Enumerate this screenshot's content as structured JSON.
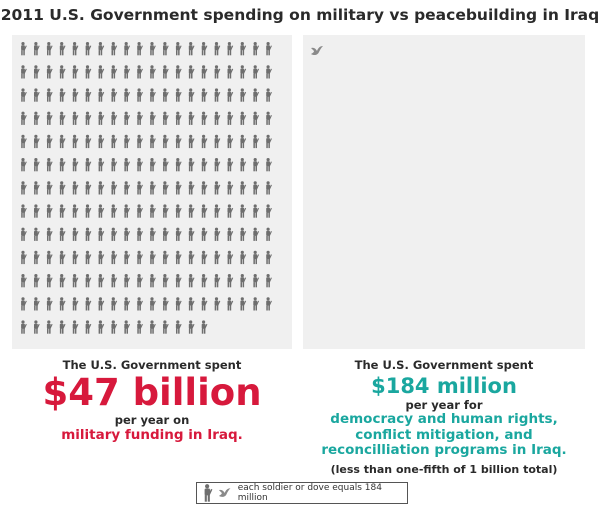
{
  "title": "2011 U.S. Government spending on military vs peacebuilding in Iraq",
  "colors": {
    "red": "#d7193c",
    "teal": "#1aa79f",
    "icon": "#6e6e6e",
    "dove": "#8a8a8a",
    "panel": "#f0f0f0"
  },
  "left": {
    "line1": "The U.S. Government spent",
    "amount": "$47 billion",
    "line2": "per year on",
    "line3": "military funding in Iraq."
  },
  "right": {
    "line1": "The U.S. Government spent",
    "amount": "$184 million",
    "line2": "per year for",
    "line3": "democracy and human rights,",
    "line4": "conflict mitigation,  and",
    "line5": "reconcilliation programs in Iraq.",
    "note": "(less than one-fifth of 1 billion total)"
  },
  "legend": {
    "icons": [
      "soldier-icon",
      "dove-icon"
    ],
    "text": "each soldier or dove equals 184 million"
  },
  "chart_data": {
    "type": "pictograph",
    "unit_value_millions": 184,
    "series": [
      {
        "name": "military funding in Iraq",
        "icon": "soldier-icon",
        "value_millions": 47000,
        "icon_count": 255
      },
      {
        "name": "democracy and human rights, conflict mitigation, and reconcilliation programs in Iraq",
        "icon": "dove-icon",
        "value_millions": 184,
        "icon_count": 1
      }
    ]
  }
}
